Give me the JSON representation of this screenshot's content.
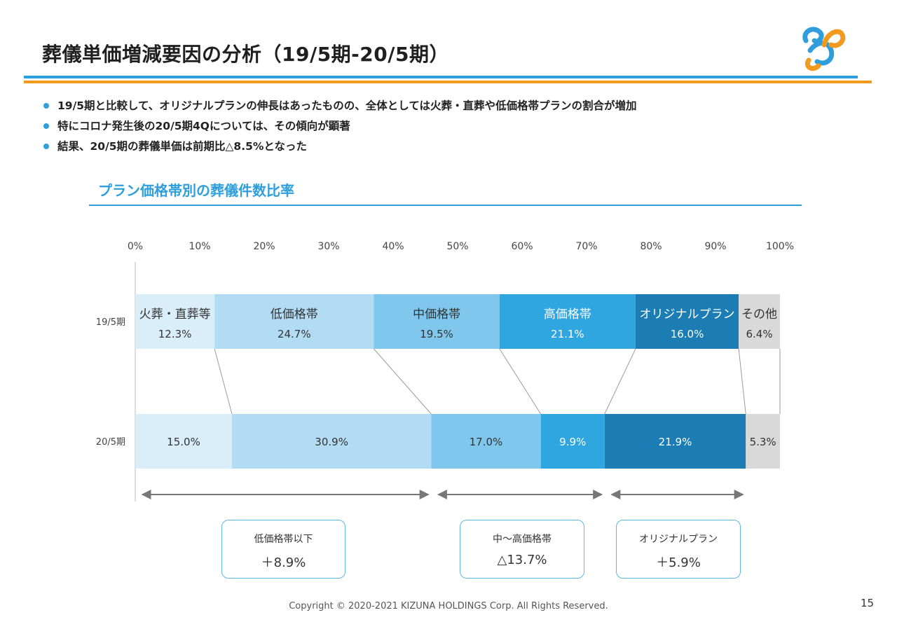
{
  "header": {
    "title": "葬儀単価増減要因の分析（19/5期-20/5期）"
  },
  "bullets": [
    "19/5期と比較して、オリジナルプランの伸長はあったものの、全体としては火葬・直葬や低価格帯プランの割合が増加",
    "特にコロナ発生後の20/5期4Qについては、その傾向が顕著",
    "結果、20/5期の葬儀単価は前期比△8.5%となった"
  ],
  "colors": {
    "accent_blue": "#2E9FDC",
    "accent_orange": "#F39A1E"
  },
  "chart_data": {
    "type": "bar",
    "orientation": "horizontal",
    "stacked": "100%",
    "title": "プラン価格帯別の葬儀件数比率",
    "x_ticks": [
      "0%",
      "10%",
      "20%",
      "30%",
      "40%",
      "50%",
      "60%",
      "70%",
      "80%",
      "90%",
      "100%"
    ],
    "xlim": [
      0,
      100
    ],
    "categories": [
      "19/5期",
      "20/5期"
    ],
    "series": [
      {
        "name": "火葬・直葬等",
        "color": "#DAEEF9",
        "values": [
          12.3,
          15.0
        ],
        "labels": [
          "12.3%",
          "15.0%"
        ],
        "text_color": "#333333"
      },
      {
        "name": "低価格帯",
        "color": "#B1DCF3",
        "values": [
          24.7,
          30.9
        ],
        "labels": [
          "24.7%",
          "30.9%"
        ],
        "text_color": "#333333"
      },
      {
        "name": "中価格帯",
        "color": "#7FC7EC",
        "values": [
          19.5,
          17.0
        ],
        "labels": [
          "19.5%",
          "17.0%"
        ],
        "text_color": "#333333"
      },
      {
        "name": "高価格帯",
        "color": "#2FA6E0",
        "values": [
          21.1,
          9.9
        ],
        "labels": [
          "21.1%",
          "9.9%"
        ],
        "text_color": "#ffffff"
      },
      {
        "name": "オリジナルプラン",
        "color": "#1B7DB3",
        "values": [
          16.0,
          21.9
        ],
        "labels": [
          "16.0%",
          "21.9%"
        ],
        "text_color": "#ffffff"
      },
      {
        "name": "その他",
        "color": "#D9D9D9",
        "values": [
          6.4,
          5.3
        ],
        "labels": [
          "6.4%",
          "5.3%"
        ],
        "text_color": "#333333"
      }
    ],
    "legend": "inline-top-bar",
    "grid": false
  },
  "summary": [
    {
      "label": "低価格帯以下",
      "value": "＋8.9%"
    },
    {
      "label": "中～高価格帯",
      "value": "△13.7%"
    },
    {
      "label": "オリジナルプラン",
      "value": "＋5.9%"
    }
  ],
  "footer": {
    "copyright": "Copyright © 2020-2021 KIZUNA HOLDINGS Corp. All Rights Reserved.",
    "page_number": "15"
  }
}
